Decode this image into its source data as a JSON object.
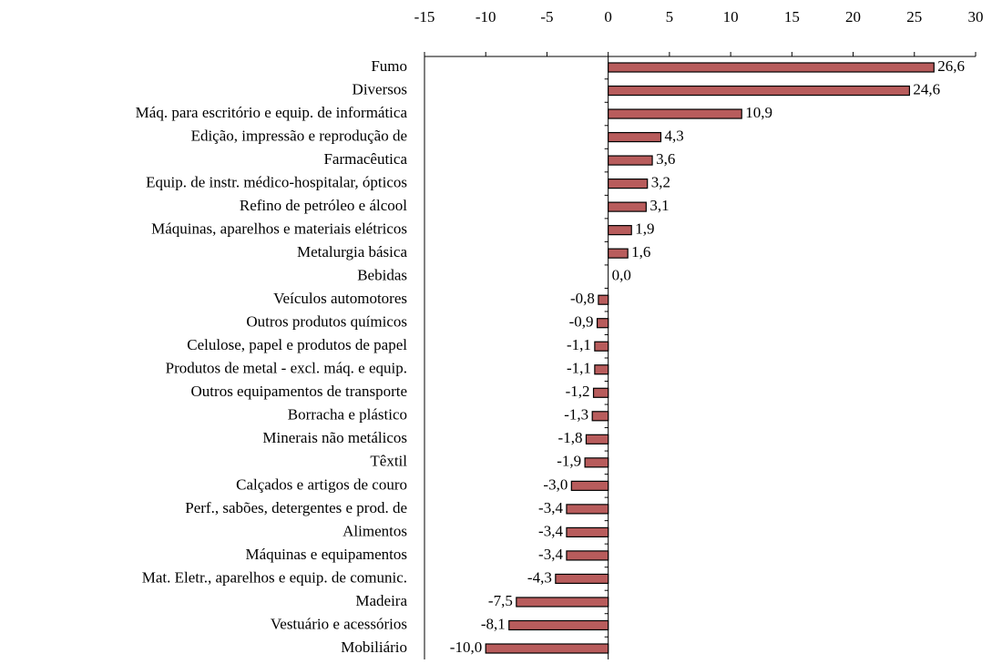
{
  "chart_data": {
    "type": "hbar",
    "categories": [
      "Fumo",
      "Diversos",
      "Máq. para escritório e equip. de informática",
      "Edição, impressão e reprodução de",
      "Farmacêutica",
      "Equip. de instr. médico-hospitalar, ópticos",
      "Refino de petróleo e álcool",
      "Máquinas, aparelhos e materiais elétricos",
      "Metalurgia básica",
      "Bebidas",
      "Veículos automotores",
      "Outros produtos químicos",
      "Celulose, papel e produtos de papel",
      "Produtos de metal - excl. máq. e equip.",
      "Outros equipamentos de transporte",
      "Borracha e plástico",
      "Minerais não metálicos",
      "Têxtil",
      "Calçados e artigos de couro",
      "Perf., sabões, detergentes e prod. de",
      "Alimentos",
      "Máquinas e equipamentos",
      "Mat. Eletr., aparelhos e equip. de comunic.",
      "Madeira",
      "Vestuário e acessórios",
      "Mobiliário"
    ],
    "values": [
      26.6,
      24.6,
      10.9,
      4.3,
      3.6,
      3.2,
      3.1,
      1.9,
      1.6,
      0.0,
      -0.8,
      -0.9,
      -1.1,
      -1.1,
      -1.2,
      -1.3,
      -1.8,
      -1.9,
      -3.0,
      -3.4,
      -3.4,
      -3.4,
      -4.3,
      -7.5,
      -8.1,
      -10.0
    ],
    "value_labels": [
      "26,6",
      "24,6",
      "10,9",
      "4,3",
      "3,6",
      "3,2",
      "3,1",
      "1,9",
      "1,6",
      "0,0",
      "-0,8",
      "-0,9",
      "-1,1",
      "-1,1",
      "-1,2",
      "-1,3",
      "-1,8",
      "-1,9",
      "-3,0",
      "-3,4",
      "-3,4",
      "-3,4",
      "-4,3",
      "-7,5",
      "-8,1",
      "-10,0"
    ],
    "color": "#b85c5c",
    "xlim": [
      -15,
      30
    ],
    "xticks": [
      -15,
      -10,
      -5,
      0,
      5,
      10,
      15,
      20,
      25,
      30
    ]
  }
}
